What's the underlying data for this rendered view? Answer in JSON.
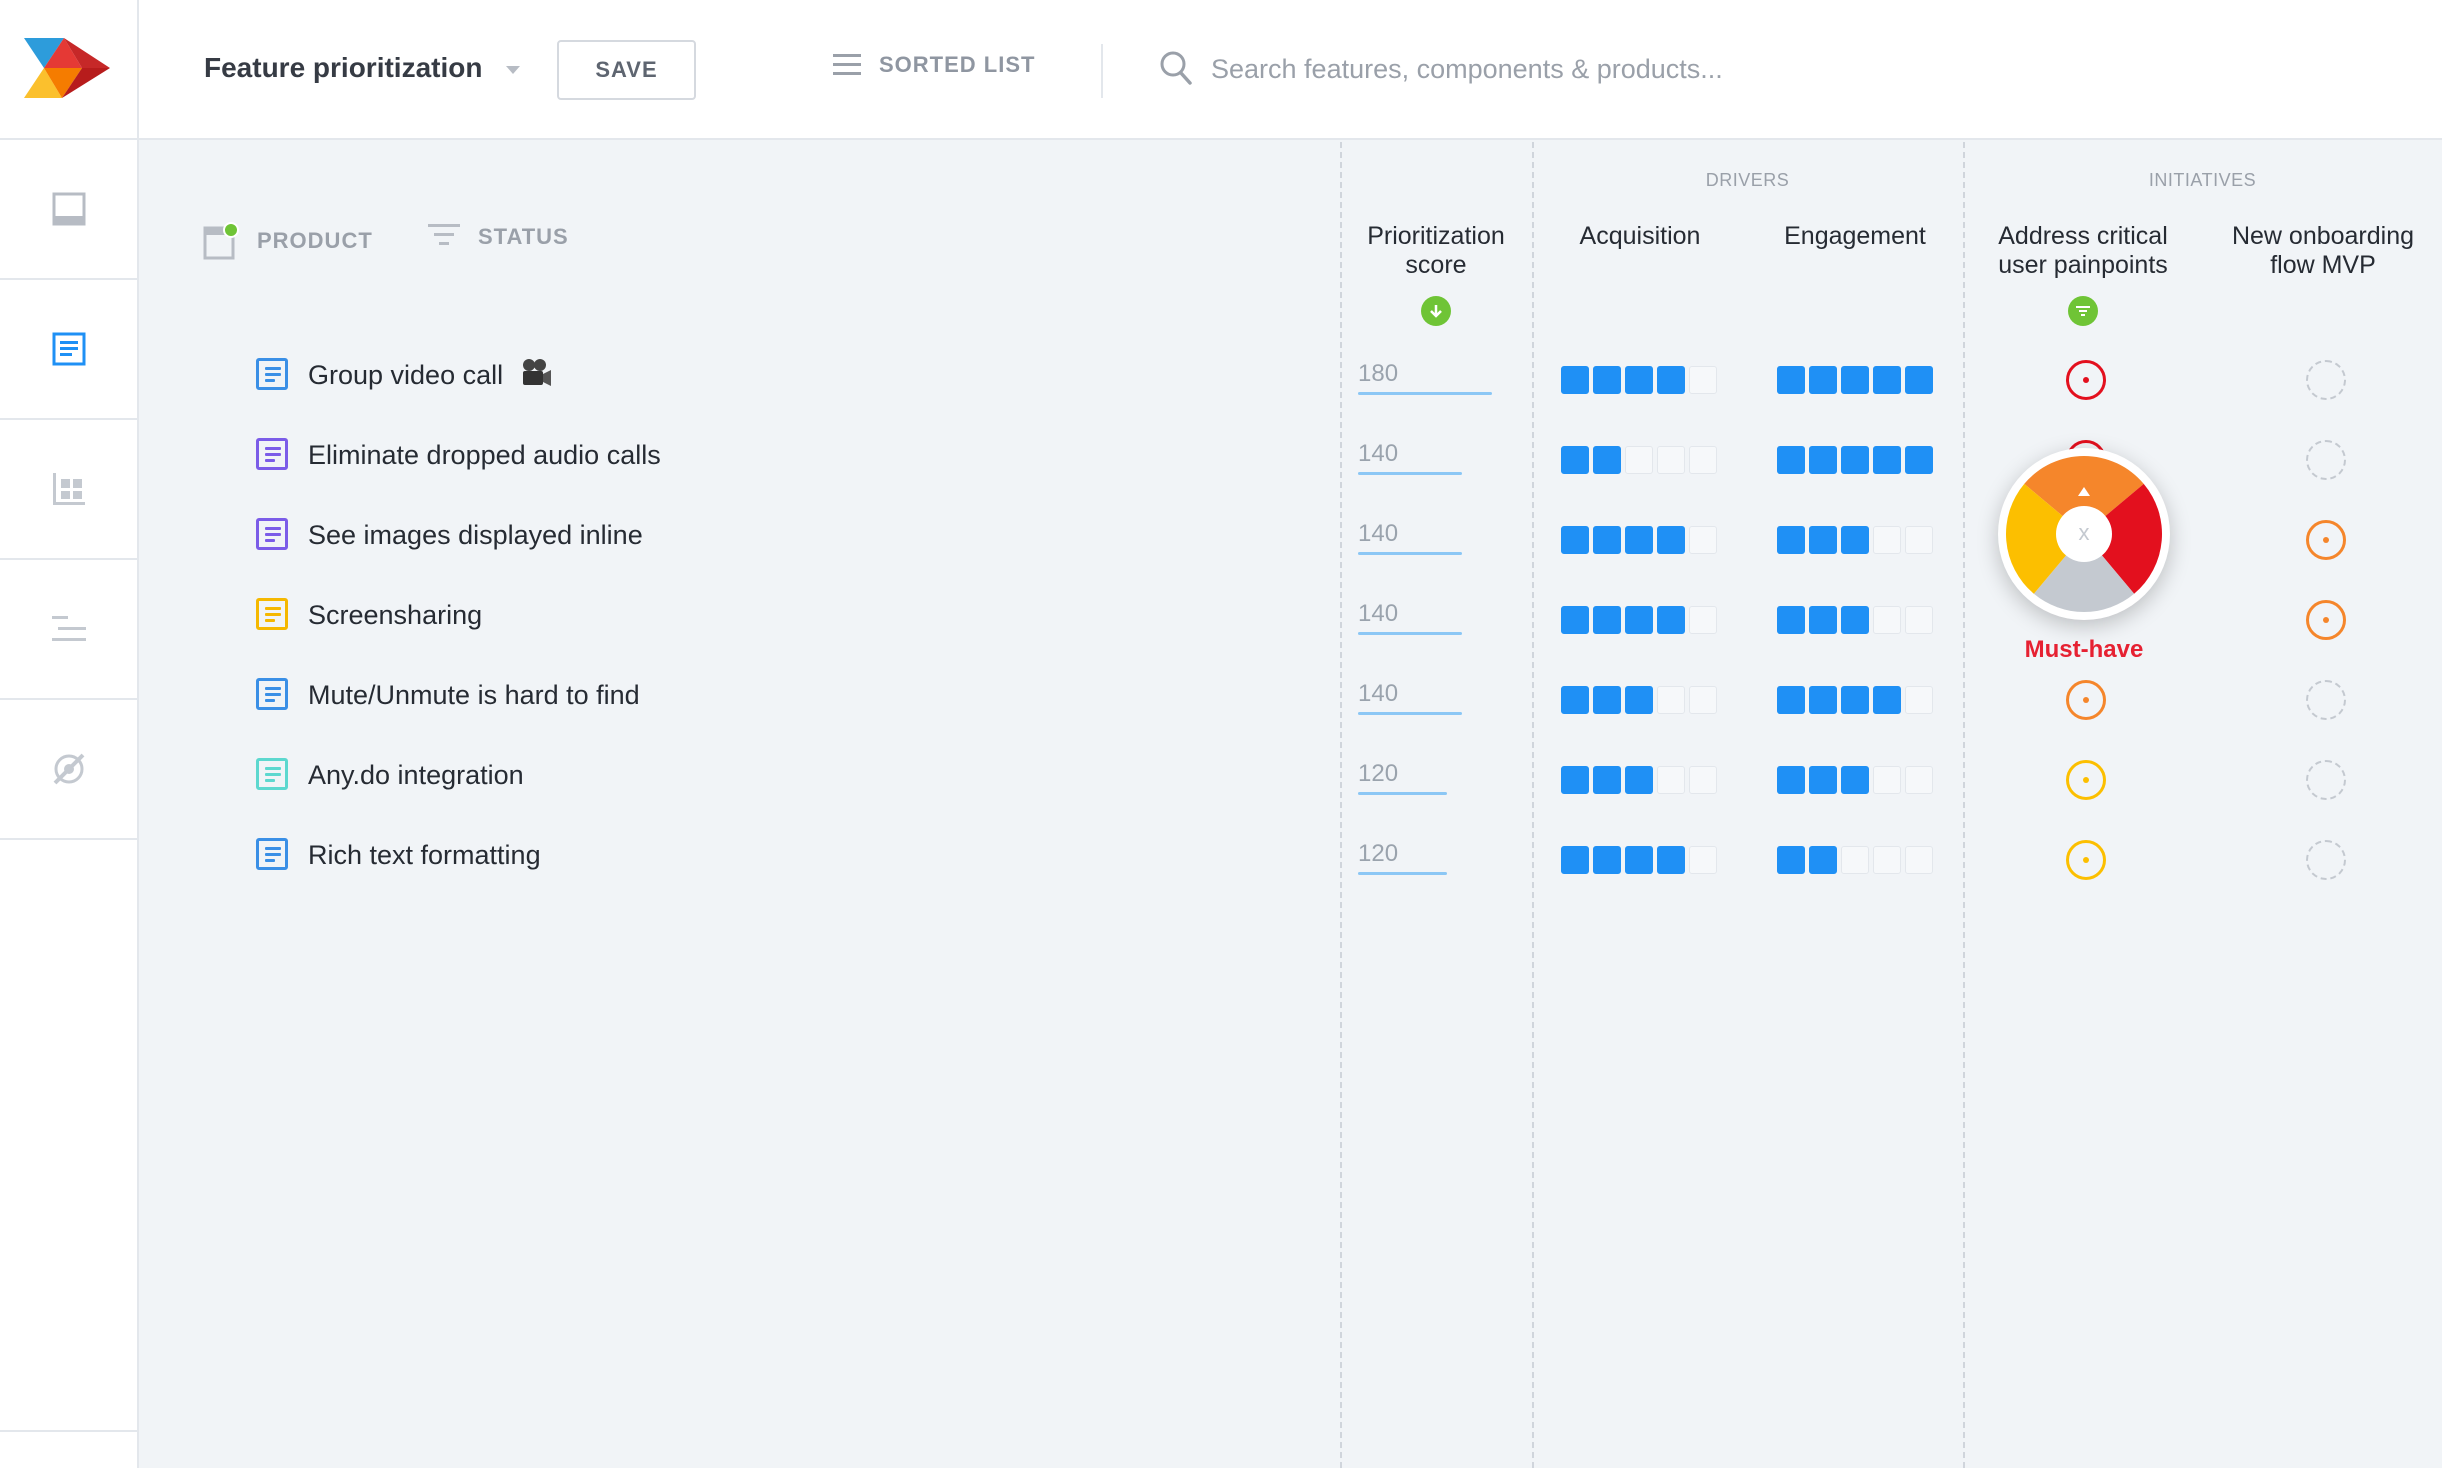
{
  "app": {
    "page_title": "Feature prioritization",
    "save_label": "SAVE",
    "view_label": "SORTED LIST",
    "search": {
      "placeholder": "Search features, components & products..."
    }
  },
  "sidebar": {
    "items": [
      {
        "icon": "inbox-icon",
        "active": false
      },
      {
        "icon": "feature-board-icon",
        "active": true
      },
      {
        "icon": "grid-icon",
        "active": false
      },
      {
        "icon": "roadmap-icon",
        "active": false
      },
      {
        "icon": "hidden-eye-icon",
        "active": false
      }
    ]
  },
  "filters": {
    "product": "PRODUCT",
    "status": "STATUS"
  },
  "columns": {
    "score": "Prioritization score",
    "drivers_group": "DRIVERS",
    "acquisition": "Acquisition",
    "engagement": "Engagement",
    "initiatives_group": "INITIATIVES",
    "painpoints": "Address critical user painpoints",
    "onboarding": "New onboarding flow MVP"
  },
  "rows": [
    {
      "name": "Group video call",
      "icon_color": "#3a8fe6",
      "emoji": "video-camera-icon",
      "score": "180",
      "acquisition": 4,
      "engagement": 5,
      "painpoints": "red",
      "onboarding": "none"
    },
    {
      "name": "Eliminate dropped audio calls",
      "icon_color": "#7b5ce8",
      "score": "140",
      "acquisition": 2,
      "engagement": 5,
      "painpoints": "red",
      "onboarding": "none"
    },
    {
      "name": "See images displayed inline",
      "icon_color": "#7b5ce8",
      "score": "140",
      "acquisition": 4,
      "engagement": 3,
      "painpoints": "hidden",
      "onboarding": "orange"
    },
    {
      "name": "Screensharing",
      "icon_color": "#f5b800",
      "score": "140",
      "acquisition": 4,
      "engagement": 3,
      "painpoints": "hidden",
      "onboarding": "orange"
    },
    {
      "name": "Mute/Unmute is hard to find",
      "icon_color": "#3a8fe6",
      "score": "140",
      "acquisition": 3,
      "engagement": 4,
      "painpoints": "orange",
      "onboarding": "none"
    },
    {
      "name": "Any.do integration",
      "icon_color": "#5dd8cf",
      "score": "120",
      "acquisition": 3,
      "engagement": 3,
      "painpoints": "yellow",
      "onboarding": "none"
    },
    {
      "name": "Rich text formatting",
      "icon_color": "#3a8fe6",
      "score": "120",
      "acquisition": 4,
      "engagement": 2,
      "painpoints": "yellow",
      "onboarding": "none"
    }
  ],
  "popup": {
    "clear_label": "x",
    "selected_label": "Must-have",
    "colors": {
      "must_have": "#e3101e",
      "top": "#f5862b",
      "left": "#fcbf00",
      "bottom": "#c4c9d0"
    }
  },
  "colors": {
    "accent": "#1f90f5",
    "red": "#e3101e",
    "orange": "#f5862b",
    "yellow": "#fcbf00",
    "green": "#6fc436"
  }
}
